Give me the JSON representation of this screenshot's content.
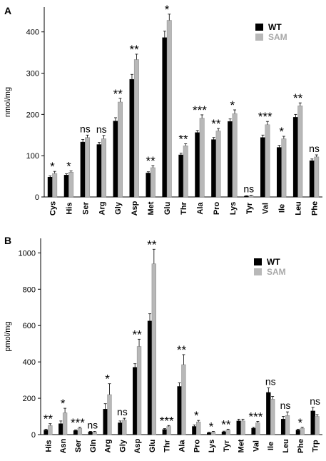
{
  "colors": {
    "wt": "#000000",
    "sam": "#b8b8b8",
    "axis": "#000000"
  },
  "chart_data": [
    {
      "panel": "A",
      "type": "bar",
      "ylabel": "nmol/mg",
      "ylim": [
        0,
        460
      ],
      "yticks": [
        0,
        100,
        200,
        300,
        400
      ],
      "legend": {
        "position": "top-right",
        "entries": [
          "WT",
          "SAM"
        ]
      },
      "categories": [
        "Cys",
        "His",
        "Ser",
        "Arg",
        "Gly",
        "Asp",
        "Met",
        "Glu",
        "Thr",
        "Ala",
        "Pro",
        "Lys",
        "Tyr",
        "Val",
        "Ile",
        "Leu",
        "Phe"
      ],
      "series": [
        {
          "name": "WT",
          "values": [
            48,
            53,
            133,
            127,
            184,
            285,
            58,
            386,
            102,
            156,
            139,
            183,
            2,
            144,
            120,
            193,
            88
          ],
          "errors": [
            3,
            3,
            6,
            5,
            8,
            12,
            3,
            16,
            4,
            5,
            5,
            6,
            1,
            6,
            5,
            7,
            4
          ]
        },
        {
          "name": "SAM",
          "values": [
            57,
            60,
            144,
            141,
            230,
            333,
            71,
            428,
            124,
            191,
            160,
            202,
            3,
            175,
            141,
            221,
            97
          ],
          "errors": [
            5,
            3,
            6,
            8,
            9,
            13,
            5,
            15,
            5,
            8,
            6,
            9,
            1,
            8,
            6,
            7,
            5
          ]
        }
      ],
      "significance": [
        "*",
        "*",
        "ns",
        "ns",
        "**",
        "**",
        "**",
        "*",
        "**",
        "***",
        "**",
        "*",
        "ns",
        "***",
        "*",
        "**",
        "ns"
      ]
    },
    {
      "panel": "B",
      "type": "bar",
      "ylabel": "pmol/mg",
      "ylim": [
        0,
        1080
      ],
      "yticks": [
        0,
        200,
        400,
        600,
        800,
        1000
      ],
      "legend": {
        "position": "top-right",
        "entries": [
          "WT",
          "SAM"
        ]
      },
      "categories": [
        "His",
        "Asn",
        "Ser",
        "Gln",
        "Arg",
        "Gly",
        "Asp",
        "Glu",
        "Thr",
        "Ala",
        "Pro",
        "Lys",
        "Tyr",
        "Met",
        "Val",
        "Ile",
        "Leu",
        "Phe",
        "Trp"
      ],
      "series": [
        {
          "name": "WT",
          "values": [
            25,
            60,
            22,
            15,
            140,
            65,
            370,
            625,
            28,
            265,
            45,
            10,
            15,
            75,
            35,
            232,
            85,
            25,
            130
          ],
          "errors": [
            5,
            15,
            4,
            3,
            30,
            10,
            20,
            40,
            5,
            20,
            8,
            3,
            4,
            10,
            5,
            25,
            15,
            5,
            20
          ]
        },
        {
          "name": "SAM",
          "values": [
            50,
            120,
            35,
            15,
            220,
            80,
            485,
            940,
            45,
            385,
            70,
            15,
            25,
            75,
            65,
            195,
            105,
            35,
            100
          ],
          "errors": [
            10,
            25,
            5,
            3,
            60,
            10,
            40,
            80,
            5,
            55,
            8,
            3,
            5,
            10,
            8,
            15,
            20,
            5,
            10
          ]
        }
      ],
      "significance": [
        "**",
        "*",
        "***",
        "ns",
        "*",
        "ns",
        "**",
        "**",
        "***",
        "**",
        "*",
        "*",
        "**",
        "",
        "***",
        "ns",
        "ns",
        "*",
        "ns"
      ]
    }
  ]
}
